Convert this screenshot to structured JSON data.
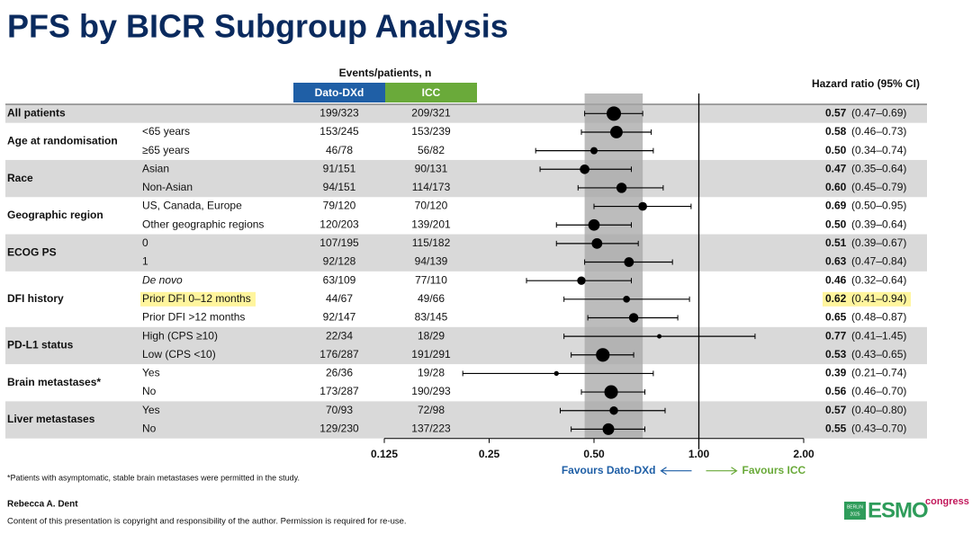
{
  "chart_data": {
    "type": "forest",
    "title": "PFS by BICR Subgroup Analysis",
    "events_header": "Events/patients, n",
    "arm_names": [
      "Dato-DXd",
      "ICC"
    ],
    "arm_colors": [
      "#1f5fa6",
      "#6aaa3a"
    ],
    "hr_header": "Hazard ratio (95% CI)",
    "log_scale": true,
    "xlim": [
      0.125,
      2
    ],
    "xticks": [
      0.125,
      0.25,
      {
        "value": 0.5,
        "label": "0.50"
      },
      {
        "value": 1,
        "label": "1.00"
      },
      {
        "value": 2,
        "label": "2.00"
      }
    ],
    "reference": 1,
    "band_from_row": 0,
    "left_label": "Favours Dato-DXd",
    "right_label": "Favours ICC",
    "groups": [
      {
        "label": "All patients",
        "shaded": true,
        "rows": [
          {
            "dato": "199/323",
            "icc": "209/321",
            "hr": 0.57,
            "hr_label": "0.57",
            "lower": 0.47,
            "upper": 0.69,
            "ci_label": "(0.47–0.69)"
          }
        ]
      },
      {
        "label": "Age at randomisation",
        "shaded": false,
        "rows": [
          {
            "subgroup": "<65 years",
            "dato": "153/245",
            "icc": "153/239",
            "hr": 0.58,
            "hr_label": "0.58",
            "lower": 0.46,
            "upper": 0.73,
            "ci_label": "(0.46–0.73)"
          },
          {
            "subgroup": "≥65 years",
            "dato": "46/78",
            "icc": "56/82",
            "hr": 0.5,
            "hr_label": "0.50",
            "lower": 0.34,
            "upper": 0.74,
            "ci_label": "(0.34–0.74)"
          }
        ]
      },
      {
        "label": "Race",
        "shaded": true,
        "rows": [
          {
            "subgroup": "Asian",
            "dato": "91/151",
            "icc": "90/131",
            "hr": 0.47,
            "hr_label": "0.47",
            "lower": 0.35,
            "upper": 0.64,
            "ci_label": "(0.35–0.64)"
          },
          {
            "subgroup": "Non-Asian",
            "dato": "94/151",
            "icc": "114/173",
            "hr": 0.6,
            "hr_label": "0.60",
            "lower": 0.45,
            "upper": 0.79,
            "ci_label": "(0.45–0.79)"
          }
        ]
      },
      {
        "label": "Geographic region",
        "shaded": false,
        "rows": [
          {
            "subgroup": "US, Canada, Europe",
            "dato": "79/120",
            "icc": "70/120",
            "hr": 0.69,
            "hr_label": "0.69",
            "lower": 0.5,
            "upper": 0.95,
            "ci_label": "(0.50–0.95)"
          },
          {
            "subgroup": "Other geographic regions",
            "dato": "120/203",
            "icc": "139/201",
            "hr": 0.5,
            "hr_label": "0.50",
            "lower": 0.39,
            "upper": 0.64,
            "ci_label": "(0.39–0.64)"
          }
        ]
      },
      {
        "label": "ECOG PS",
        "shaded": true,
        "rows": [
          {
            "subgroup": "0",
            "dato": "107/195",
            "icc": "115/182",
            "hr": 0.51,
            "hr_label": "0.51",
            "lower": 0.39,
            "upper": 0.67,
            "ci_label": "(0.39–0.67)"
          },
          {
            "subgroup": "1",
            "dato": "92/128",
            "icc": "94/139",
            "hr": 0.63,
            "hr_label": "0.63",
            "lower": 0.47,
            "upper": 0.84,
            "ci_label": "(0.47–0.84)"
          }
        ]
      },
      {
        "label": "DFI history",
        "shaded": false,
        "rows": [
          {
            "subgroup": "De novo",
            "italic": true,
            "dato": "63/109",
            "icc": "77/110",
            "hr": 0.46,
            "hr_label": "0.46",
            "lower": 0.32,
            "upper": 0.64,
            "ci_label": "(0.32–0.64)"
          },
          {
            "subgroup": "Prior DFI 0–12 months",
            "highlight": true,
            "dato": "44/67",
            "icc": "49/66",
            "hr": 0.62,
            "hr_label": "0.62",
            "lower": 0.41,
            "upper": 0.94,
            "ci_label": "(0.41–0.94)"
          },
          {
            "subgroup": "Prior DFI >12 months",
            "dato": "92/147",
            "icc": "83/145",
            "hr": 0.65,
            "hr_label": "0.65",
            "lower": 0.48,
            "upper": 0.87,
            "ci_label": "(0.48–0.87)"
          }
        ]
      },
      {
        "label": "PD-L1 status",
        "shaded": true,
        "rows": [
          {
            "subgroup": "High (CPS ≥10)",
            "dato": "22/34",
            "icc": "18/29",
            "hr": 0.77,
            "hr_label": "0.77",
            "lower": 0.41,
            "upper": 1.45,
            "ci_label": "(0.41–1.45)"
          },
          {
            "subgroup": "Low (CPS <10)",
            "dato": "176/287",
            "icc": "191/291",
            "hr": 0.53,
            "hr_label": "0.53",
            "lower": 0.43,
            "upper": 0.65,
            "ci_label": "(0.43–0.65)"
          }
        ]
      },
      {
        "label": "Brain metastases*",
        "shaded": false,
        "rows": [
          {
            "subgroup": "Yes",
            "dato": "26/36",
            "icc": "19/28",
            "hr": 0.39,
            "hr_label": "0.39",
            "lower": 0.21,
            "upper": 0.74,
            "ci_label": "(0.21–0.74)"
          },
          {
            "subgroup": "No",
            "dato": "173/287",
            "icc": "190/293",
            "hr": 0.56,
            "hr_label": "0.56",
            "lower": 0.46,
            "upper": 0.7,
            "ci_label": "(0.46–0.70)"
          }
        ]
      },
      {
        "label": "Liver metastases",
        "shaded": true,
        "rows": [
          {
            "subgroup": "Yes",
            "dato": "70/93",
            "icc": "72/98",
            "hr": 0.57,
            "hr_label": "0.57",
            "lower": 0.4,
            "upper": 0.8,
            "ci_label": "(0.40–0.80)"
          },
          {
            "subgroup": "No",
            "dato": "129/230",
            "icc": "137/223",
            "hr": 0.55,
            "hr_label": "0.55",
            "lower": 0.43,
            "upper": 0.7,
            "ci_label": "(0.43–0.70)"
          }
        ]
      }
    ],
    "footnote": "*Patients with asymptomatic, stable brain metastases were permitted in the study.",
    "author": "Rebecca A. Dent",
    "copyright": "Content of this presentation is copyright and responsibility of the author. Permission is required for re-use.",
    "logo": {
      "city": "BERLIN",
      "year": "2025",
      "name": "ESMO",
      "suffix": "congress"
    }
  }
}
